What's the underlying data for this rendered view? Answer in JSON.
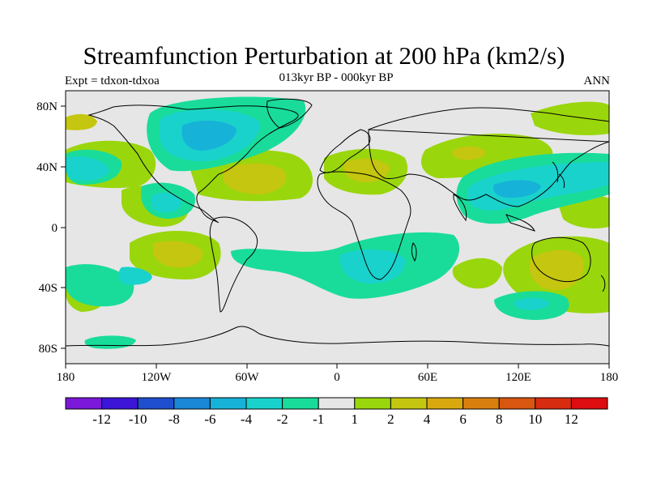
{
  "title": "Streamfunction Perturbation at 200 hPa (km2/s)",
  "subtitle": "013kyr BP - 000kyr BP",
  "left_label": "Expt = tdxon-tdxoa",
  "right_label": "ANN",
  "axes": {
    "lat_labels": [
      "80N",
      "40N",
      "0",
      "40S",
      "80S"
    ],
    "lon_labels": [
      "180",
      "120W",
      "60W",
      "0",
      "60E",
      "120E",
      "180"
    ]
  },
  "colorbar": {
    "labels": [
      "-12",
      "-10",
      "-8",
      "-6",
      "-4",
      "-2",
      "-1",
      "1",
      "2",
      "4",
      "6",
      "8",
      "10",
      "12"
    ],
    "colors": [
      "#7b17d9",
      "#3c14d7",
      "#1f4fcf",
      "#1a87d7",
      "#17b2d8",
      "#1ad2cc",
      "#19dc9a",
      "#e6e6e6",
      "#9ad60c",
      "#c5c60f",
      "#d8a80e",
      "#d87f0f",
      "#d8560f",
      "#d82c10",
      "#dc0c10"
    ]
  },
  "colors": {
    "background": "#e6e6e6",
    "coastline": "#000000"
  }
}
